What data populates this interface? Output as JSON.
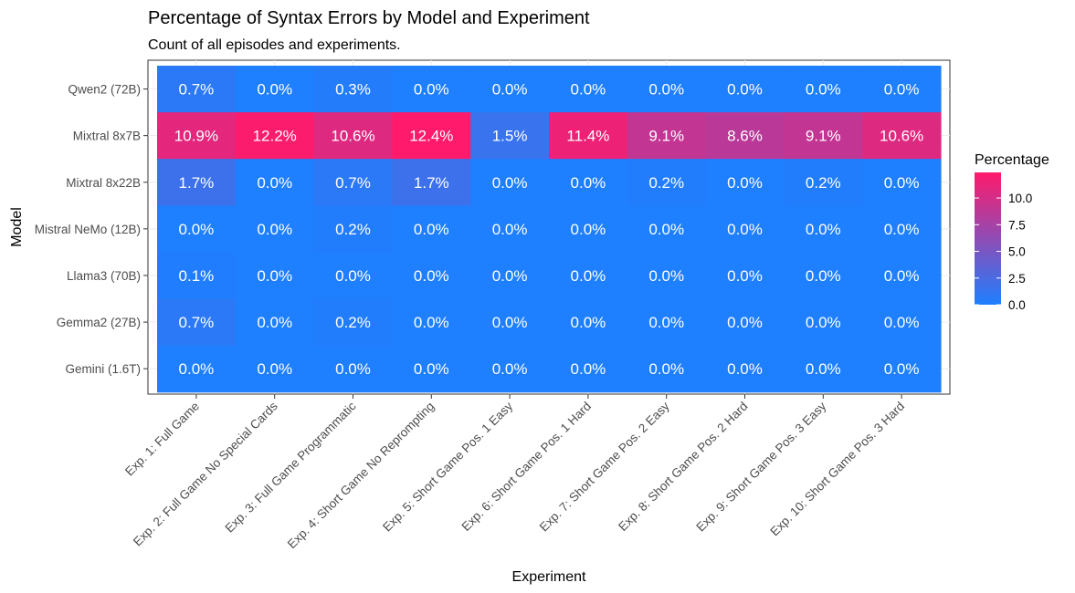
{
  "chart_data": {
    "type": "heatmap",
    "title": "Percentage of Syntax Errors by Model and Experiment",
    "subtitle": "Count of all episodes and experiments.",
    "xlabel": "Experiment",
    "ylabel": "Model",
    "x": [
      "Exp. 1: Full Game",
      "Exp. 2: Full Game No Special Cards",
      "Exp. 3: Full Game Programmatic",
      "Exp. 4: Short Game No Reprompting",
      "Exp. 5: Short Game Pos. 1 Easy",
      "Exp. 6: Short Game Pos. 1 Hard",
      "Exp. 7: Short Game Pos. 2 Easy",
      "Exp. 8: Short Game Pos. 2 Hard",
      "Exp. 9: Short Game Pos. 3 Easy",
      "Exp. 10: Short Game Pos. 3 Hard"
    ],
    "y": [
      "Qwen2 (72B)",
      "Mixtral 8x7B",
      "Mixtral 8x22B",
      "Mistral NeMo (12B)",
      "Llama3 (70B)",
      "Gemma2 (27B)",
      "Gemini (1.6T)"
    ],
    "values": [
      [
        0.7,
        0.0,
        0.3,
        0.0,
        0.0,
        0.0,
        0.0,
        0.0,
        0.0,
        0.0
      ],
      [
        10.9,
        12.2,
        10.6,
        12.4,
        1.5,
        11.4,
        9.1,
        8.6,
        9.1,
        10.6
      ],
      [
        1.7,
        0.0,
        0.7,
        1.7,
        0.0,
        0.0,
        0.2,
        0.0,
        0.2,
        0.0
      ],
      [
        0.0,
        0.0,
        0.2,
        0.0,
        0.0,
        0.0,
        0.0,
        0.0,
        0.0,
        0.0
      ],
      [
        0.1,
        0.0,
        0.0,
        0.0,
        0.0,
        0.0,
        0.0,
        0.0,
        0.0,
        0.0
      ],
      [
        0.7,
        0.0,
        0.2,
        0.0,
        0.0,
        0.0,
        0.0,
        0.0,
        0.0,
        0.0
      ],
      [
        0.0,
        0.0,
        0.0,
        0.0,
        0.0,
        0.0,
        0.0,
        0.0,
        0.0,
        0.0
      ]
    ],
    "value_format": "%",
    "color_scale": {
      "low": "#1e7fff",
      "high": "#ff1a6b",
      "range": [
        0,
        12.4
      ]
    },
    "legend": {
      "title": "Percentage",
      "ticks": [
        "0.0",
        "2.5",
        "5.0",
        "7.5",
        "10.0"
      ],
      "placement": "right"
    },
    "grid": true
  }
}
